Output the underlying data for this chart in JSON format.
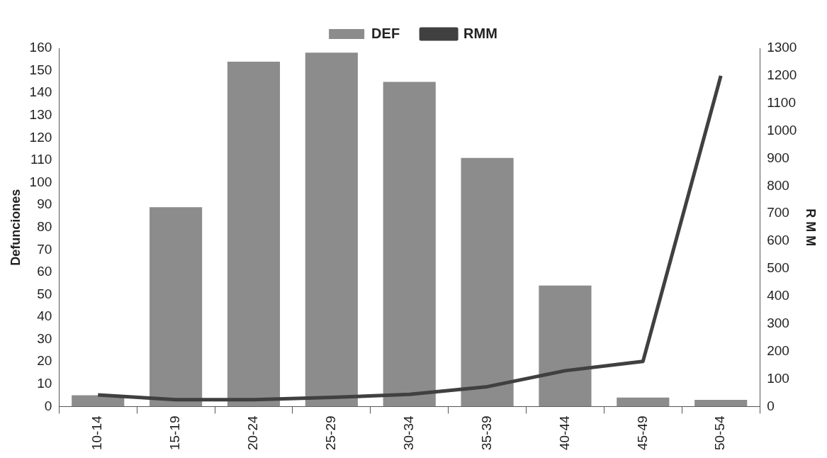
{
  "chart_data": {
    "type": "bar",
    "categories": [
      "10-14",
      "15-19",
      "20-24",
      "25-29",
      "30-34",
      "35-39",
      "40-44",
      "45-49",
      "50-54"
    ],
    "series": [
      {
        "name": "DEF",
        "color": "#8c8c8c",
        "values": [
          5,
          89,
          154,
          158,
          145,
          111,
          54,
          4,
          3
        ]
      },
      {
        "name": "RMM",
        "type": "line",
        "axis": "y2",
        "color": "#404040",
        "values": [
          42,
          25,
          25,
          33,
          44,
          72,
          130,
          164,
          1200
        ]
      }
    ],
    "ylabel": "Defunciones",
    "y2label": "R M M",
    "ylim": [
      0,
      160
    ],
    "yticks": [
      0,
      10,
      20,
      30,
      40,
      50,
      60,
      70,
      80,
      90,
      100,
      110,
      120,
      130,
      140,
      150,
      160
    ],
    "y2lim": [
      0,
      1300
    ],
    "y2ticks": [
      0,
      100,
      200,
      300,
      400,
      500,
      600,
      700,
      800,
      900,
      1000,
      1100,
      1200,
      1300
    ],
    "legend": "top",
    "grid": false,
    "marker": "none"
  }
}
